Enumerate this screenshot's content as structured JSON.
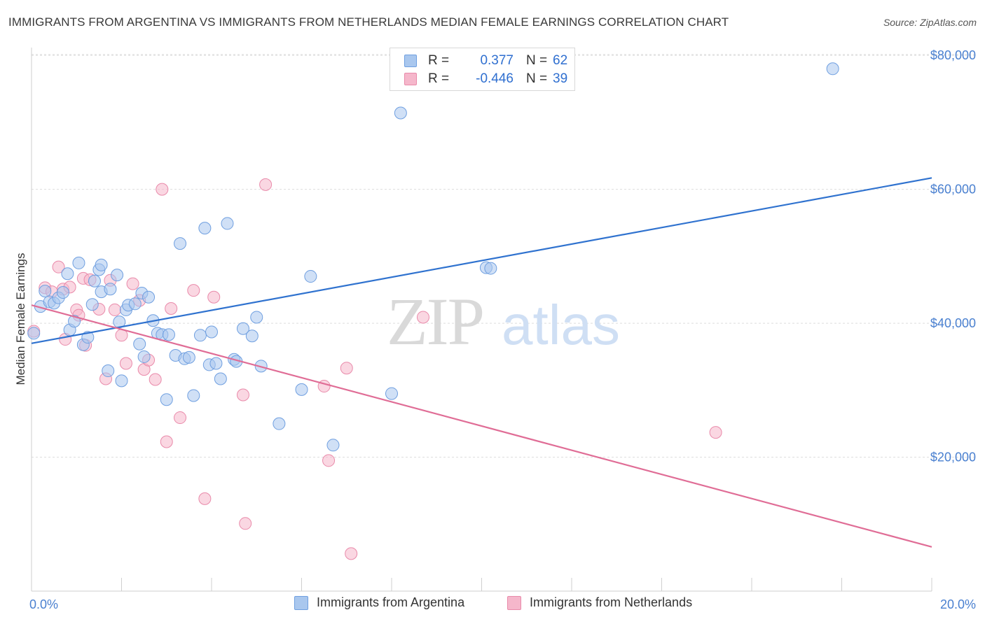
{
  "title": "IMMIGRANTS FROM ARGENTINA VS IMMIGRANTS FROM NETHERLANDS MEDIAN FEMALE EARNINGS CORRELATION CHART",
  "source": "Source: ZipAtlas.com",
  "watermark": {
    "zip": "ZIP",
    "atlas": "atlas"
  },
  "legend": {
    "rows": [
      {
        "r_label": "R =",
        "r_value": "0.377",
        "n_label": "N =",
        "n_value": "62"
      },
      {
        "r_label": "R =",
        "r_value": "-0.446",
        "n_label": "N =",
        "n_value": "39"
      }
    ]
  },
  "colors": {
    "argentina_fill": "#a9c7ee",
    "argentina_stroke": "#6f9fe0",
    "argentina_line": "#2f72cf",
    "netherlands_fill": "#f5b7cb",
    "netherlands_stroke": "#e98aaa",
    "netherlands_line": "#e06d96",
    "grid": "#dddddd",
    "axis_text": "#4a80d0"
  },
  "chart_data": {
    "type": "scatter",
    "title": "IMMIGRANTS FROM ARGENTINA VS IMMIGRANTS FROM NETHERLANDS MEDIAN FEMALE EARNINGS CORRELATION CHART",
    "xlabel": "",
    "ylabel": "Median Female Earnings",
    "xlim": [
      0,
      20
    ],
    "ylim": [
      0,
      82000
    ],
    "x_tick_labels": [
      "0.0%",
      "20.0%"
    ],
    "y_ticks": [
      20000,
      40000,
      60000,
      80000
    ],
    "y_tick_labels": [
      "$20,000",
      "$40,000",
      "$60,000",
      "$80,000"
    ],
    "grid": true,
    "legend_position": "top-center",
    "series": [
      {
        "name": "Immigrants from Argentina",
        "r": 0.377,
        "n": 62,
        "trend": {
          "x0": 0,
          "y0": 37000,
          "x1": 20,
          "y1": 61700
        },
        "points": [
          [
            0.05,
            38500
          ],
          [
            0.2,
            42500
          ],
          [
            0.3,
            44800
          ],
          [
            0.4,
            43200
          ],
          [
            0.5,
            43000
          ],
          [
            0.6,
            43800
          ],
          [
            0.7,
            44600
          ],
          [
            0.8,
            47400
          ],
          [
            0.85,
            39000
          ],
          [
            0.95,
            40300
          ],
          [
            1.05,
            49000
          ],
          [
            1.15,
            36800
          ],
          [
            1.25,
            37900
          ],
          [
            1.35,
            42800
          ],
          [
            1.4,
            46300
          ],
          [
            1.5,
            48000
          ],
          [
            1.55,
            44700
          ],
          [
            1.7,
            32900
          ],
          [
            1.75,
            45100
          ],
          [
            1.9,
            47200
          ],
          [
            1.95,
            40200
          ],
          [
            2.0,
            31400
          ],
          [
            2.1,
            42000
          ],
          [
            2.15,
            42700
          ],
          [
            2.3,
            42900
          ],
          [
            2.4,
            36900
          ],
          [
            2.45,
            44500
          ],
          [
            2.5,
            35000
          ],
          [
            2.6,
            43900
          ],
          [
            2.7,
            40400
          ],
          [
            2.8,
            38500
          ],
          [
            2.9,
            38300
          ],
          [
            3.0,
            28600
          ],
          [
            3.2,
            35200
          ],
          [
            3.3,
            51900
          ],
          [
            3.4,
            34700
          ],
          [
            3.5,
            34900
          ],
          [
            3.6,
            29200
          ],
          [
            3.75,
            38200
          ],
          [
            3.85,
            54200
          ],
          [
            3.95,
            33800
          ],
          [
            4.0,
            38700
          ],
          [
            4.1,
            34000
          ],
          [
            4.2,
            31700
          ],
          [
            4.35,
            54900
          ],
          [
            4.5,
            34600
          ],
          [
            4.55,
            34300
          ],
          [
            4.7,
            39200
          ],
          [
            4.9,
            38100
          ],
          [
            5.0,
            40900
          ],
          [
            5.1,
            33600
          ],
          [
            5.5,
            25000
          ],
          [
            6.0,
            30100
          ],
          [
            6.2,
            47000
          ],
          [
            6.7,
            21800
          ],
          [
            8.0,
            29500
          ],
          [
            8.2,
            71400
          ],
          [
            10.1,
            48300
          ],
          [
            10.2,
            48200
          ],
          [
            17.8,
            78000
          ],
          [
            1.55,
            48700
          ],
          [
            3.05,
            38300
          ]
        ]
      },
      {
        "name": "Immigrants from Netherlands",
        "r": -0.446,
        "n": 39,
        "trend": {
          "x0": 0,
          "y0": 42700,
          "x1": 20,
          "y1": 6600
        },
        "points": [
          [
            0.05,
            38800
          ],
          [
            0.3,
            45300
          ],
          [
            0.45,
            44700
          ],
          [
            0.6,
            48400
          ],
          [
            0.7,
            45100
          ],
          [
            0.75,
            37600
          ],
          [
            0.85,
            45400
          ],
          [
            1.0,
            42000
          ],
          [
            1.05,
            41200
          ],
          [
            1.15,
            46700
          ],
          [
            1.2,
            36700
          ],
          [
            1.3,
            46500
          ],
          [
            1.5,
            42100
          ],
          [
            1.65,
            31700
          ],
          [
            1.75,
            46400
          ],
          [
            1.85,
            42000
          ],
          [
            2.0,
            38200
          ],
          [
            2.1,
            34000
          ],
          [
            2.25,
            45900
          ],
          [
            2.4,
            43400
          ],
          [
            2.5,
            33100
          ],
          [
            2.6,
            34500
          ],
          [
            2.75,
            31600
          ],
          [
            2.9,
            60000
          ],
          [
            3.0,
            22300
          ],
          [
            3.1,
            42200
          ],
          [
            3.3,
            25900
          ],
          [
            3.6,
            44900
          ],
          [
            3.85,
            13800
          ],
          [
            4.05,
            43900
          ],
          [
            4.7,
            29300
          ],
          [
            4.75,
            10100
          ],
          [
            5.2,
            60700
          ],
          [
            6.5,
            30600
          ],
          [
            6.6,
            19500
          ],
          [
            7.0,
            33300
          ],
          [
            7.1,
            5600
          ],
          [
            8.7,
            40900
          ],
          [
            15.2,
            23700
          ]
        ]
      }
    ]
  },
  "bottom_legend": {
    "argentina": "Immigrants from Argentina",
    "netherlands": "Immigrants from Netherlands"
  }
}
